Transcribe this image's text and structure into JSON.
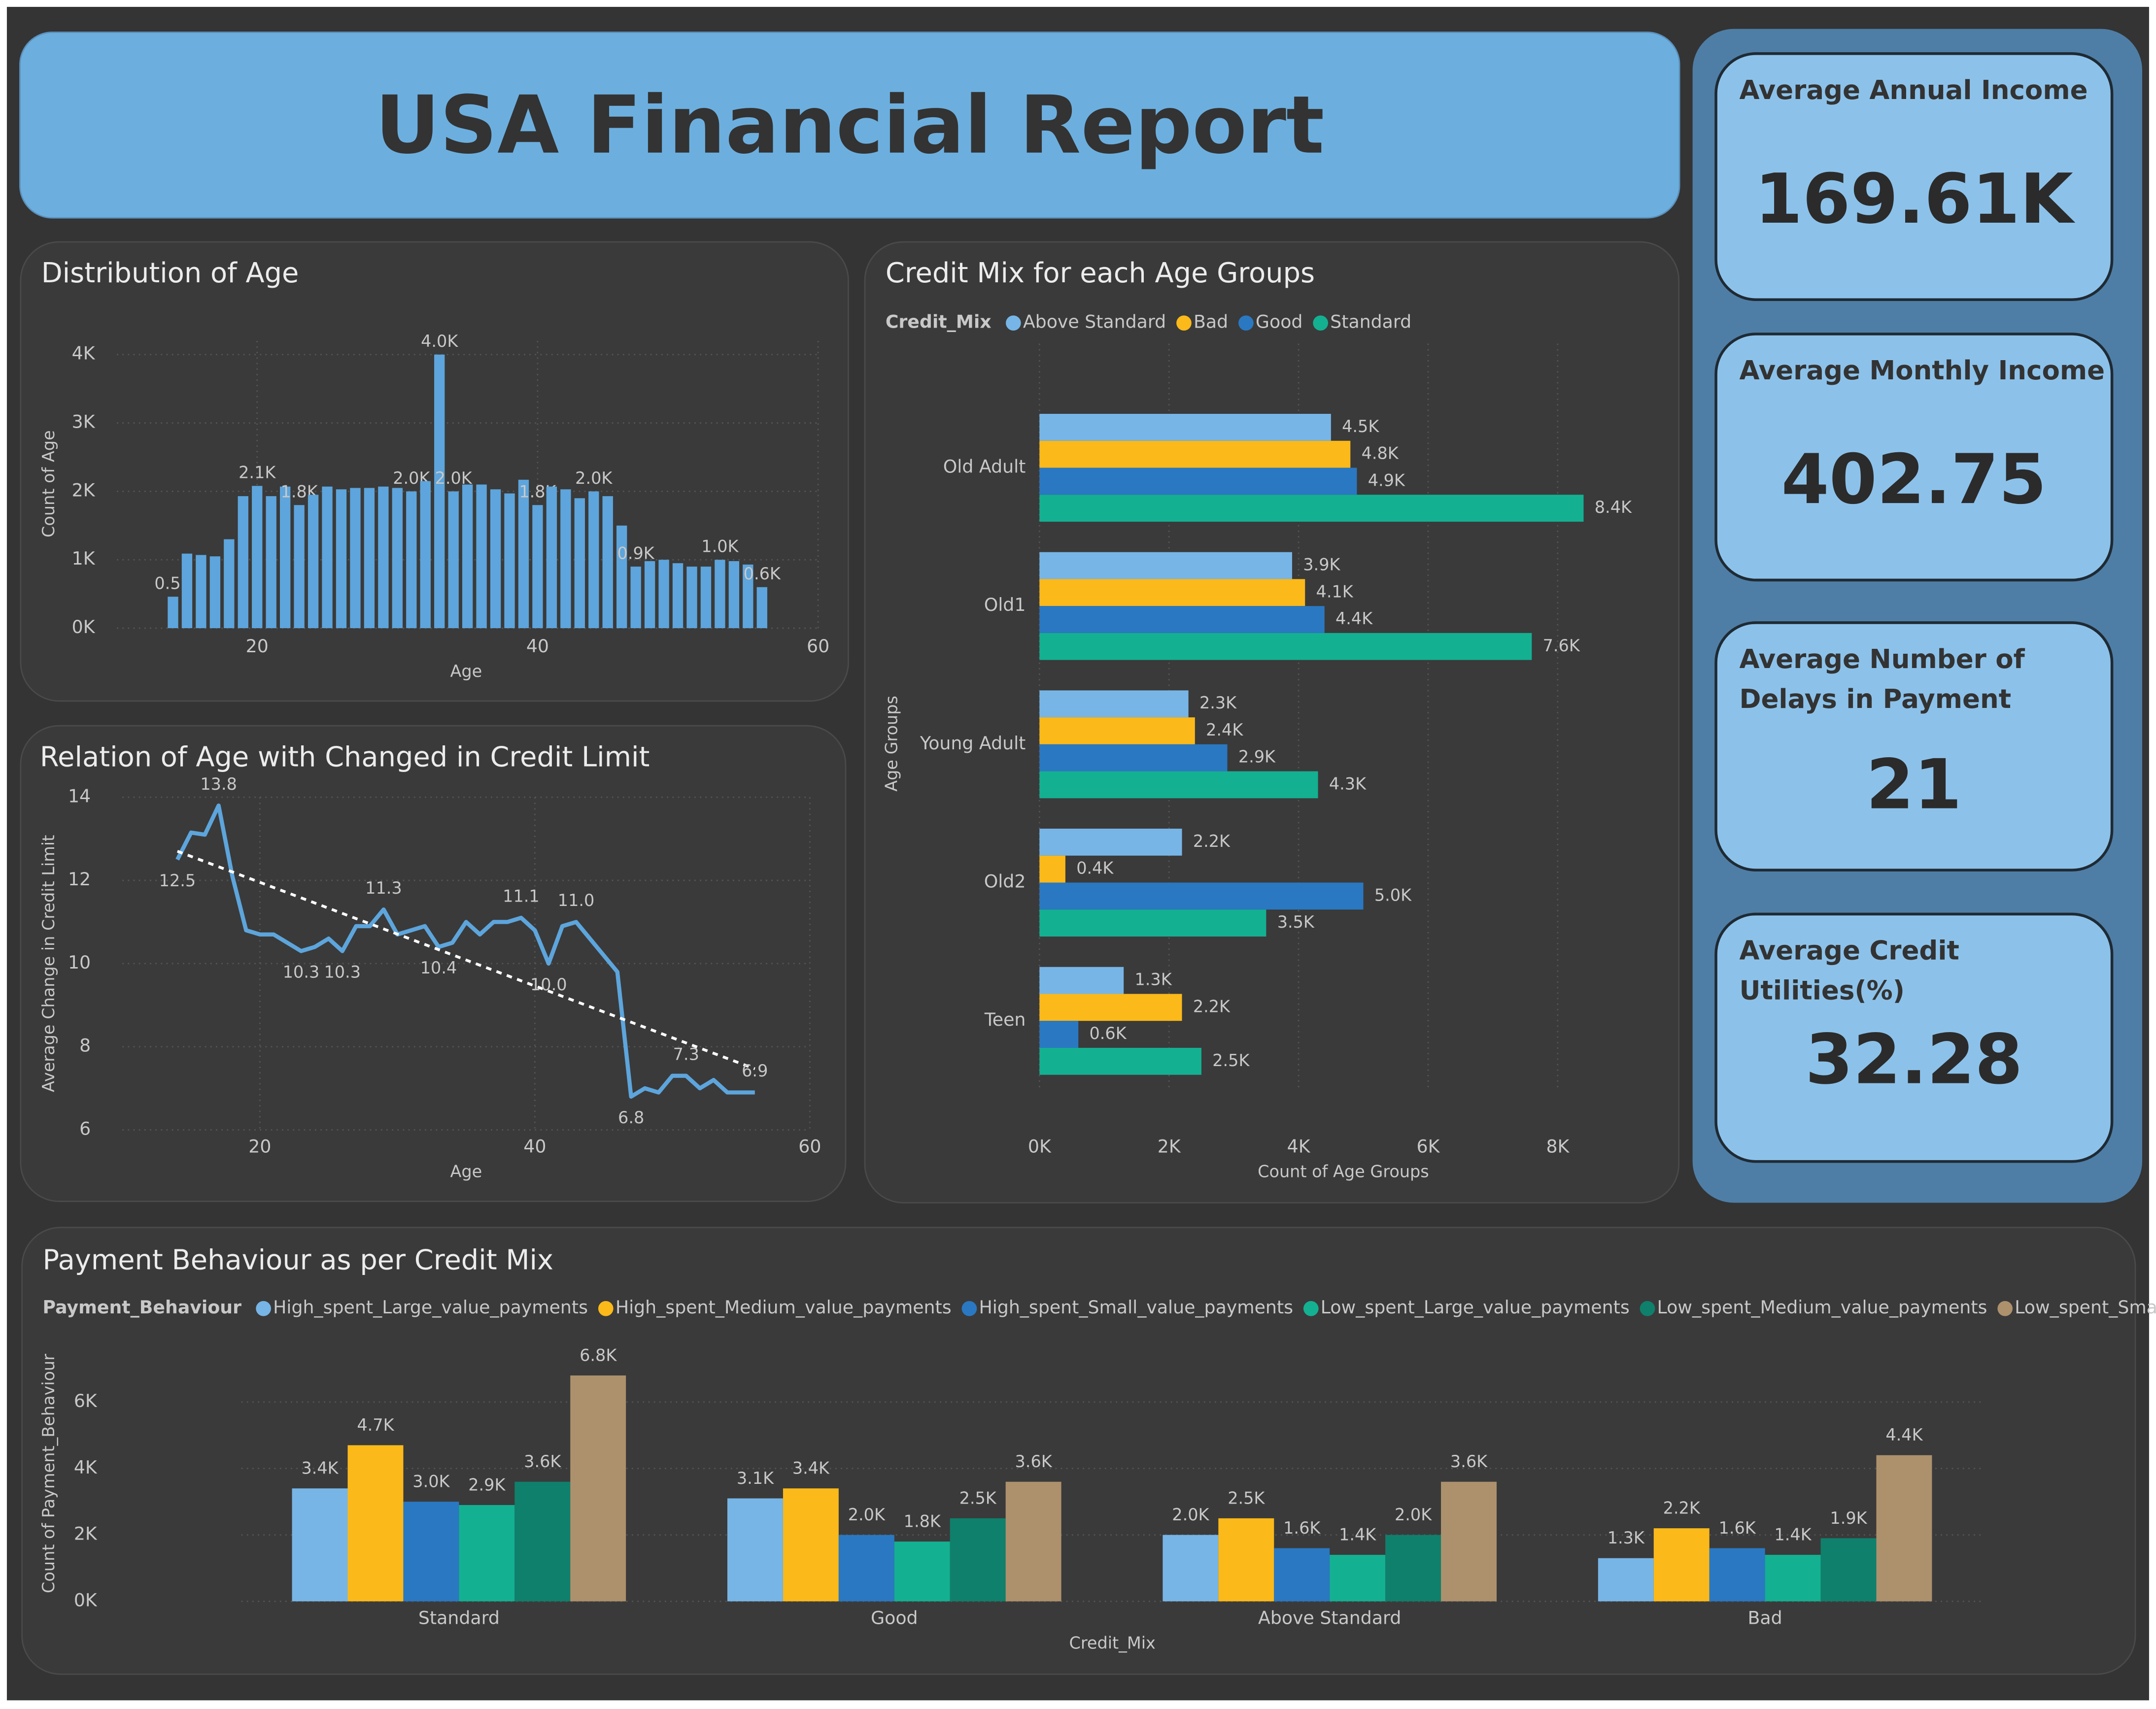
{
  "title": "USA Financial Report",
  "cards": [
    {
      "label": "Average Annual Income",
      "value": "169.61K"
    },
    {
      "label": "Average Monthly Income",
      "value": "402.75"
    },
    {
      "label": "Average Number of Delays in Payment",
      "value": "21"
    },
    {
      "label": "Average Credit Utilities(%)",
      "value": "32.28"
    }
  ],
  "chart_data": [
    {
      "type": "bar",
      "title": "Distribution of Age",
      "x_label": "Age",
      "y_label": "Count of Age",
      "color": "#5da5dc",
      "grid": true,
      "x": [
        14,
        15,
        16,
        17,
        18,
        19,
        20,
        21,
        22,
        23,
        24,
        25,
        26,
        27,
        28,
        29,
        30,
        31,
        32,
        33,
        34,
        35,
        36,
        37,
        38,
        39,
        40,
        41,
        42,
        43,
        44,
        45,
        46,
        47,
        48,
        49,
        50,
        51,
        52,
        53,
        54,
        55,
        56
      ],
      "values": [
        460,
        1090,
        1070,
        1050,
        1300,
        1930,
        2080,
        1930,
        2070,
        1800,
        1950,
        2070,
        2030,
        2050,
        2050,
        2070,
        2050,
        2000,
        2150,
        4000,
        2000,
        2100,
        2100,
        2030,
        1970,
        2170,
        1800,
        2070,
        2030,
        1900,
        2000,
        1930,
        1500,
        900,
        980,
        1000,
        950,
        900,
        900,
        1000,
        980,
        930,
        600
      ],
      "value_labels": [
        "0.5K",
        null,
        null,
        null,
        null,
        null,
        "2.1K",
        null,
        null,
        "1.8K",
        null,
        null,
        null,
        null,
        null,
        null,
        null,
        "2.0K",
        null,
        "4.0K",
        "2.0K",
        null,
        null,
        null,
        null,
        null,
        "1.8K",
        null,
        null,
        null,
        "2.0K",
        null,
        null,
        "0.9K",
        null,
        null,
        null,
        null,
        null,
        "1.0K",
        null,
        null,
        "0.6K"
      ],
      "xlim": [
        10,
        60
      ],
      "xticks": [
        20,
        40,
        60
      ],
      "ylim": [
        0,
        4200
      ],
      "yticks": [
        {
          "value": 0,
          "label": "0K"
        },
        {
          "value": 1000,
          "label": "1K"
        },
        {
          "value": 2000,
          "label": "2K"
        },
        {
          "value": 3000,
          "label": "3K"
        },
        {
          "value": 4000,
          "label": "4K"
        }
      ]
    },
    {
      "type": "line",
      "title": "Relation of Age with Changed in Credit Limit",
      "x_label": "Age",
      "y_label": "Average Change in Credit Limit",
      "color": "#5da5dc",
      "grid": true,
      "trend_line": true,
      "x": [
        14,
        15,
        16,
        17,
        18,
        19,
        20,
        21,
        22,
        23,
        24,
        25,
        26,
        27,
        28,
        29,
        30,
        31,
        32,
        33,
        34,
        35,
        36,
        37,
        38,
        39,
        40,
        41,
        42,
        43,
        44,
        45,
        46,
        47,
        48,
        49,
        50,
        51,
        52,
        53,
        54,
        55,
        56
      ],
      "values": [
        12.5,
        13.15,
        13.1,
        13.8,
        12.1,
        10.8,
        10.7,
        10.7,
        10.5,
        10.3,
        10.4,
        10.6,
        10.3,
        10.9,
        10.9,
        11.3,
        10.7,
        10.8,
        10.9,
        10.4,
        10.5,
        11.0,
        10.7,
        11.0,
        11.0,
        11.1,
        10.8,
        10.0,
        10.9,
        11.0,
        10.6,
        10.2,
        9.8,
        6.8,
        7.0,
        6.9,
        7.3,
        7.3,
        7.0,
        7.2,
        6.9,
        6.9,
        6.9
      ],
      "value_labels": [
        "12.5",
        null,
        null,
        "13.8",
        null,
        null,
        null,
        null,
        null,
        "10.3",
        null,
        null,
        "10.3",
        null,
        null,
        "11.3",
        null,
        null,
        null,
        "10.4",
        null,
        null,
        null,
        null,
        null,
        "11.1",
        null,
        "10.0",
        null,
        "11.0",
        null,
        null,
        null,
        "6.8",
        null,
        null,
        null,
        "7.3",
        null,
        null,
        null,
        null,
        "6.9"
      ],
      "xlim": [
        10,
        60
      ],
      "xticks": [
        20,
        40,
        60
      ],
      "ylim": [
        6,
        14
      ],
      "yticks": [
        6,
        8,
        10,
        12,
        14
      ]
    },
    {
      "type": "bar",
      "horizontal": true,
      "title": "Credit Mix for each Age Groups",
      "x_label": "Count of Age Groups",
      "y_label": "Age Groups",
      "legend_title": "Credit_Mix",
      "grid": true,
      "categories": [
        "Old Adult",
        "Old1",
        "Young Adult",
        "Old2",
        "Teen"
      ],
      "series": [
        {
          "name": "Above Standard",
          "color": "#77b5e6",
          "values": [
            4500,
            3900,
            2300,
            2200,
            1300
          ],
          "value_labels": [
            "4.5K",
            "3.9K",
            "2.3K",
            "2.2K",
            "1.3K"
          ]
        },
        {
          "name": "Bad",
          "color": "#fbb91a",
          "values": [
            4800,
            4100,
            2400,
            400,
            2200
          ],
          "value_labels": [
            "4.8K",
            "4.1K",
            "2.4K",
            "0.4K",
            "2.2K"
          ]
        },
        {
          "name": "Good",
          "color": "#2a78c2",
          "values": [
            4900,
            4400,
            2900,
            5000,
            600
          ],
          "value_labels": [
            "4.9K",
            "4.4K",
            "2.9K",
            "5.0K",
            "0.6K"
          ]
        },
        {
          "name": "Standard",
          "color": "#14b092",
          "values": [
            8400,
            7600,
            4300,
            3500,
            2500
          ],
          "value_labels": [
            "8.4K",
            "7.6K",
            "4.3K",
            "3.5K",
            "2.5K"
          ]
        }
      ],
      "xlim": [
        0,
        9000
      ],
      "xticks": [
        {
          "value": 0,
          "label": "0K"
        },
        {
          "value": 2000,
          "label": "2K"
        },
        {
          "value": 4000,
          "label": "4K"
        },
        {
          "value": 6000,
          "label": "6K"
        },
        {
          "value": 8000,
          "label": "8K"
        }
      ]
    },
    {
      "type": "bar",
      "title": "Payment Behaviour as per Credit Mix",
      "x_label": "Credit_Mix",
      "y_label": "Count of Payment_Behaviour",
      "legend_title": "Payment_Behaviour",
      "grid": true,
      "categories": [
        "Standard",
        "Good",
        "Above Standard",
        "Bad"
      ],
      "series": [
        {
          "name": "High_spent_Large_value_payments",
          "color": "#77b5e6",
          "values": [
            3400,
            3100,
            2000,
            1300
          ],
          "value_labels": [
            "3.4K",
            "3.1K",
            "2.0K",
            "1.3K"
          ]
        },
        {
          "name": "High_spent_Medium_value_payments",
          "color": "#fbb91a",
          "values": [
            4700,
            3400,
            2500,
            2200
          ],
          "value_labels": [
            "4.7K",
            "3.4K",
            "2.5K",
            "2.2K"
          ]
        },
        {
          "name": "High_spent_Small_value_payments",
          "color": "#2a78c2",
          "values": [
            3000,
            2000,
            1600,
            1600
          ],
          "value_labels": [
            "3.0K",
            "2.0K",
            "1.6K",
            "1.6K"
          ]
        },
        {
          "name": "Low_spent_Large_value_payments",
          "color": "#14b092",
          "values": [
            2900,
            1800,
            1400,
            1400
          ],
          "value_labels": [
            "2.9K",
            "1.8K",
            "1.4K",
            "1.4K"
          ]
        },
        {
          "name": "Low_spent_Medium_value_payments",
          "color": "#0f806c",
          "values": [
            3600,
            2500,
            2000,
            1900
          ],
          "value_labels": [
            "3.6K",
            "2.5K",
            "2.0K",
            "1.9K"
          ]
        },
        {
          "name": "Low_spent_Small_value…",
          "color": "#ad916c",
          "values": [
            6800,
            3600,
            3600,
            4400
          ],
          "value_labels": [
            "6.8K",
            "3.6K",
            "3.6K",
            "4.4K"
          ]
        }
      ],
      "ylim": [
        0,
        7200
      ],
      "yticks": [
        {
          "value": 0,
          "label": "0K"
        },
        {
          "value": 2000,
          "label": "2K"
        },
        {
          "value": 4000,
          "label": "4K"
        },
        {
          "value": 6000,
          "label": "6K"
        }
      ]
    }
  ]
}
